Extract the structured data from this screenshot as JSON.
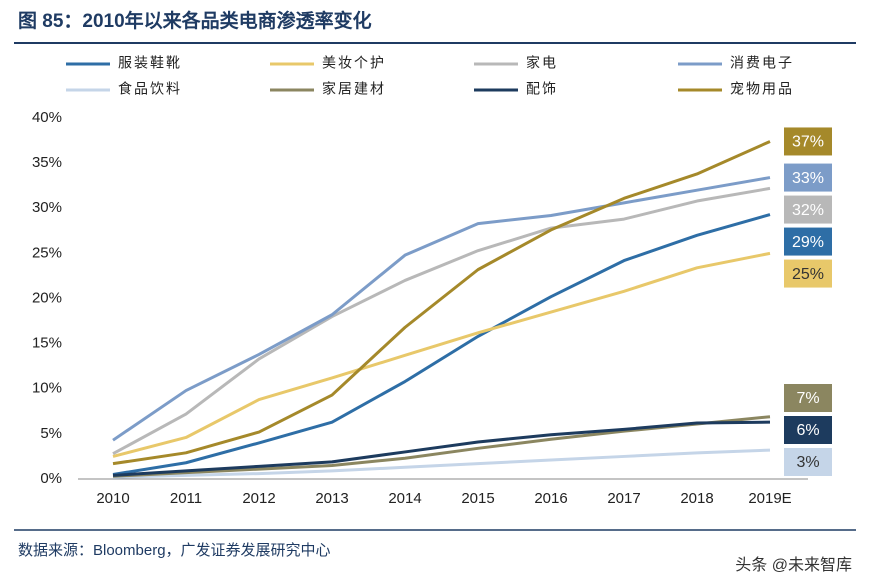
{
  "chart_data": {
    "type": "line",
    "title": "图 85：2010年以来各品类电商渗透率变化",
    "source": "数据来源：Bloomberg，广发证券发展研究中心",
    "watermark": "头条 @未来智库",
    "categories": [
      "2010",
      "2011",
      "2012",
      "2013",
      "2014",
      "2015",
      "2016",
      "2017",
      "2018",
      "2019E"
    ],
    "ylim": [
      0,
      40
    ],
    "yticks": [
      {
        "value": 0,
        "label": "0%"
      },
      {
        "value": 5,
        "label": "5%"
      },
      {
        "value": 10,
        "label": "10%"
      },
      {
        "value": 15,
        "label": "15%"
      },
      {
        "value": 20,
        "label": "20%"
      },
      {
        "value": 25,
        "label": "25%"
      },
      {
        "value": 30,
        "label": "30%"
      },
      {
        "value": 35,
        "label": "35%"
      },
      {
        "value": 40,
        "label": "40%"
      }
    ],
    "grid": false,
    "series": [
      {
        "name": "服装鞋靴",
        "color": "#2e6ea6",
        "values": [
          0.5,
          1.8,
          4.0,
          6.3,
          10.8,
          15.8,
          20.2,
          24.2,
          27.0,
          29.3
        ],
        "value_labels": [
          null,
          null,
          null,
          null,
          null,
          null,
          null,
          null,
          null,
          "29%"
        ]
      },
      {
        "name": "美妆个护",
        "color": "#e8c86a",
        "values": [
          2.5,
          4.6,
          8.8,
          11.2,
          13.7,
          16.2,
          18.5,
          20.8,
          23.4,
          25.0
        ],
        "value_labels": [
          null,
          null,
          null,
          null,
          null,
          null,
          null,
          null,
          null,
          "25%"
        ]
      },
      {
        "name": "家电",
        "color": "#b8b8b8",
        "values": [
          2.8,
          7.2,
          13.3,
          18.0,
          22.0,
          25.3,
          27.8,
          28.8,
          30.8,
          32.2
        ],
        "value_labels": [
          null,
          null,
          null,
          null,
          null,
          null,
          null,
          null,
          null,
          "32%"
        ]
      },
      {
        "name": "消费电子",
        "color": "#7c9cc8",
        "values": [
          4.3,
          9.8,
          13.8,
          18.2,
          24.8,
          28.3,
          29.2,
          30.6,
          32.0,
          33.4
        ],
        "value_labels": [
          null,
          null,
          null,
          null,
          null,
          null,
          null,
          null,
          null,
          "33%"
        ]
      },
      {
        "name": "食品饮料",
        "color": "#c5d5e8",
        "values": [
          0.2,
          0.4,
          0.6,
          0.9,
          1.3,
          1.7,
          2.1,
          2.5,
          2.9,
          3.2
        ],
        "value_labels": [
          null,
          null,
          null,
          null,
          null,
          null,
          null,
          null,
          null,
          "3%"
        ]
      },
      {
        "name": "家居建材",
        "color": "#8b8660",
        "values": [
          0.3,
          0.7,
          1.1,
          1.5,
          2.3,
          3.4,
          4.4,
          5.3,
          6.1,
          6.9
        ],
        "value_labels": [
          null,
          null,
          null,
          null,
          null,
          null,
          null,
          null,
          null,
          "7%"
        ]
      },
      {
        "name": "配饰",
        "color": "#1d3b5e",
        "values": [
          0.4,
          0.9,
          1.4,
          1.9,
          3.0,
          4.1,
          4.9,
          5.5,
          6.2,
          6.3
        ],
        "value_labels": [
          null,
          null,
          null,
          null,
          null,
          null,
          null,
          null,
          null,
          "6%"
        ]
      },
      {
        "name": "宠物用品",
        "color": "#a5892a",
        "values": [
          1.7,
          2.9,
          5.2,
          9.3,
          16.8,
          23.2,
          27.6,
          31.1,
          33.8,
          37.4
        ],
        "value_labels": [
          null,
          null,
          null,
          null,
          null,
          null,
          null,
          null,
          null,
          "37%"
        ]
      }
    ]
  }
}
